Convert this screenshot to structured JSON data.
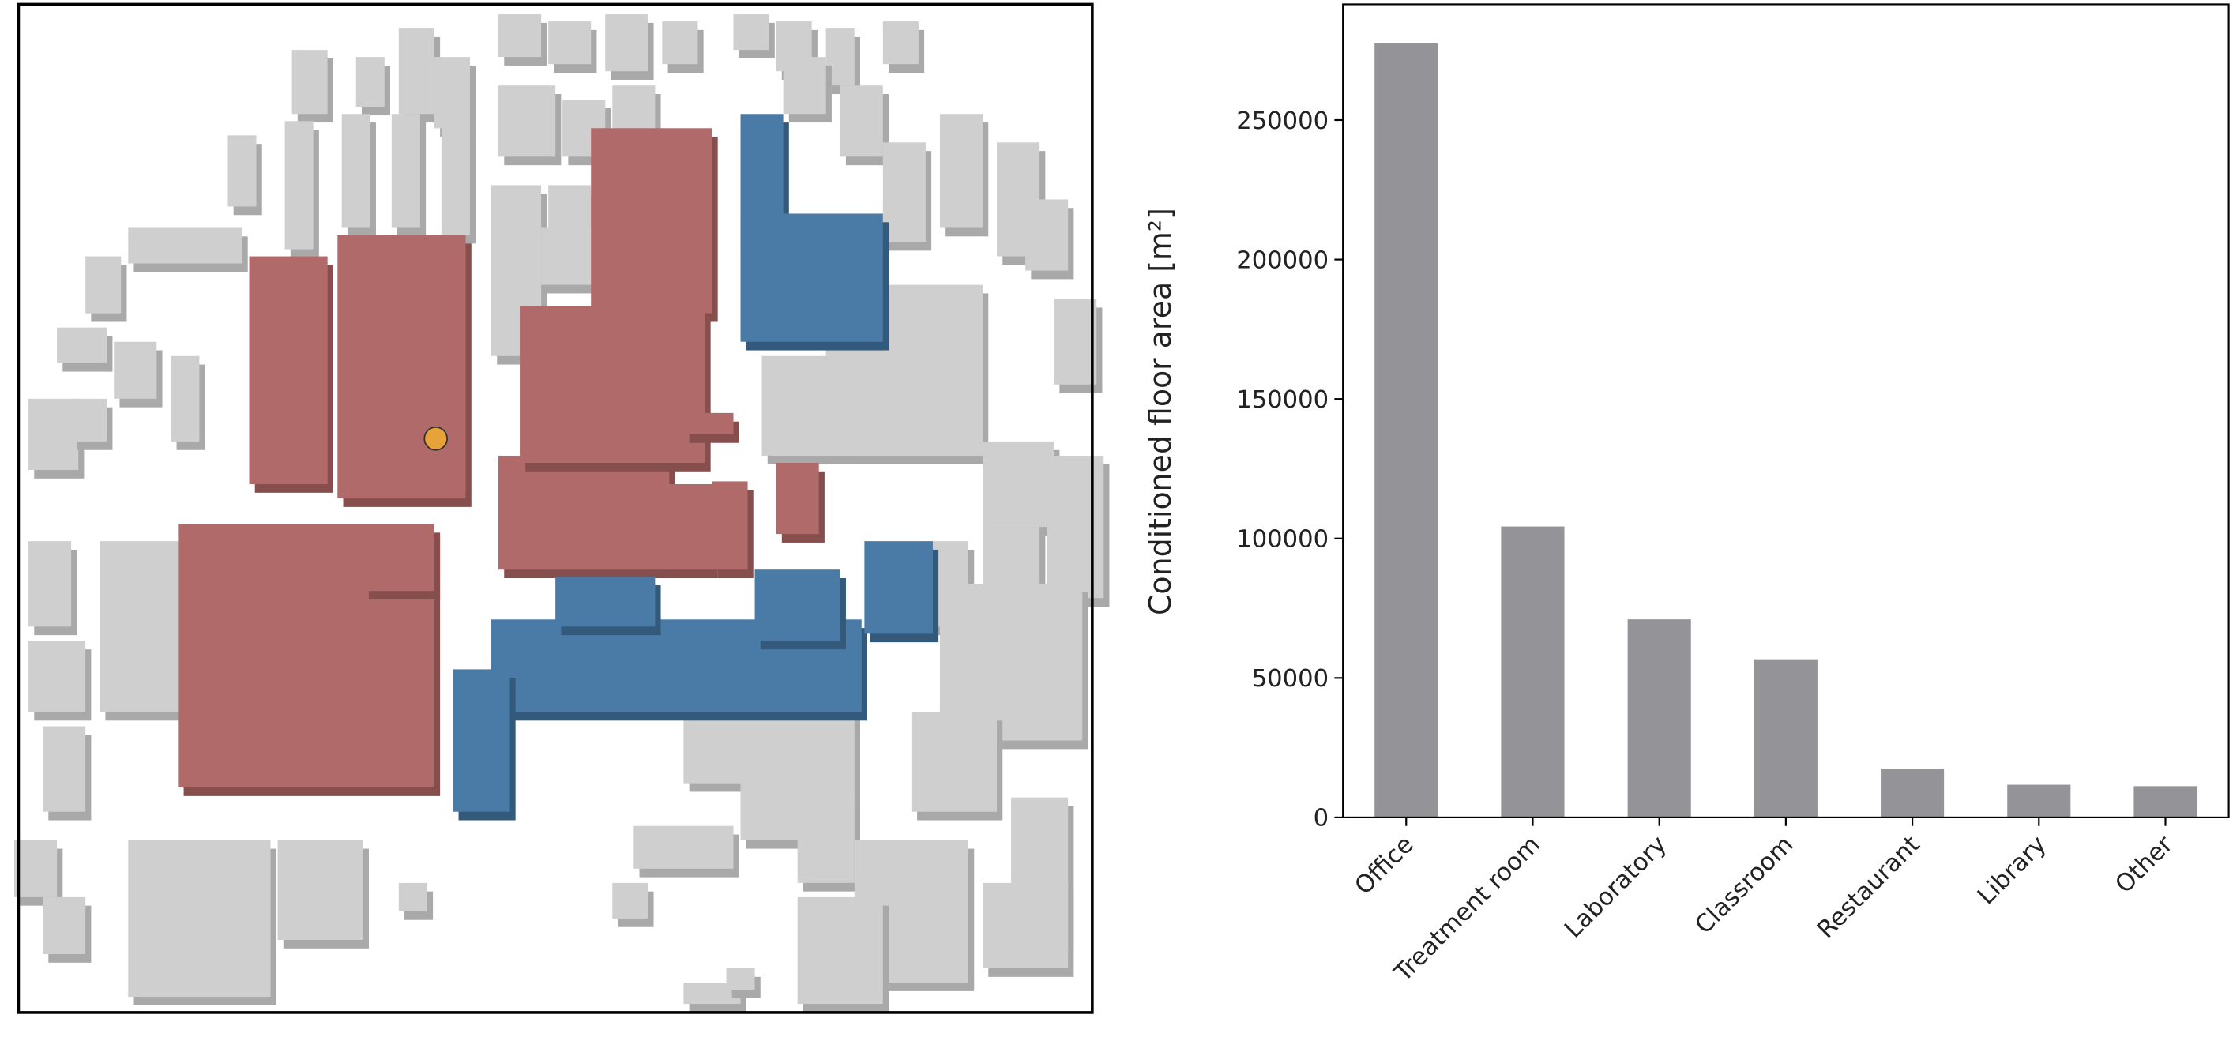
{
  "chart_data": {
    "type": "bar",
    "y_label": "Conditioned floor area [m²]",
    "categories": [
      "Office",
      "Treatment room",
      "Laboratory",
      "Classroom",
      "Restaurant",
      "Library",
      "Other"
    ],
    "values": [
      277500,
      104300,
      71000,
      56700,
      17400,
      11700,
      11200
    ],
    "color": "#939398",
    "ylim": [
      0,
      291500
    ],
    "yticks": [
      0,
      50000,
      100000,
      150000,
      200000,
      250000
    ]
  }
}
